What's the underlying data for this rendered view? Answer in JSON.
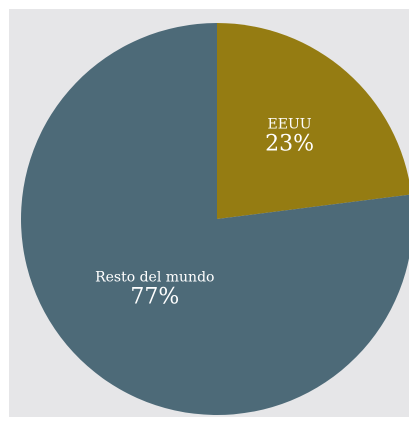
{
  "chart_data": {
    "type": "pie",
    "title": "",
    "slices": [
      {
        "label": "EEUU",
        "value": 23,
        "value_label": "23%",
        "color": "#957c12"
      },
      {
        "label": "Resto del mundo",
        "value": 77,
        "value_label": "77%",
        "color": "#4d6a78"
      }
    ],
    "start": "12 o'clock",
    "direction": "clockwise",
    "legend": "none"
  },
  "colors": {
    "panel_background": "#e6e6e8",
    "label_text": "#ffffff"
  }
}
